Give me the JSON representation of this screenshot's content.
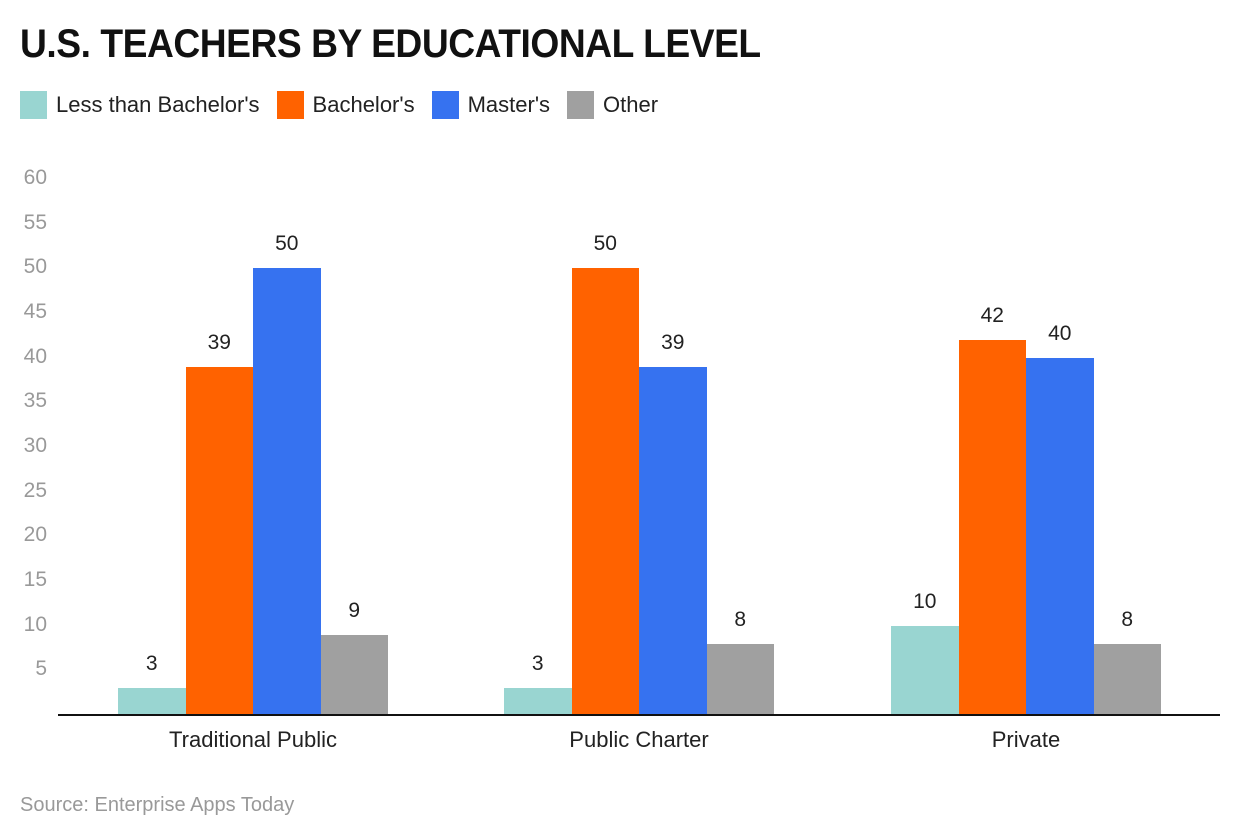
{
  "title": "U.S. TEACHERS BY EDUCATIONAL LEVEL",
  "legend": [
    {
      "label": "Less than Bachelor's",
      "color": "#99d5d1"
    },
    {
      "label": "Bachelor's",
      "color": "#ff6200"
    },
    {
      "label": "Master's",
      "color": "#3672f0"
    },
    {
      "label": "Other",
      "color": "#a0a0a0"
    }
  ],
  "source": "Source: Enterprise Apps Today",
  "chart_data": {
    "type": "bar",
    "title": "U.S. TEACHERS BY EDUCATIONAL LEVEL",
    "xlabel": "",
    "ylabel": "",
    "ylim": [
      0,
      60
    ],
    "yticks": [
      5,
      10,
      15,
      20,
      25,
      30,
      35,
      40,
      45,
      50,
      55,
      60
    ],
    "grid": false,
    "legend_position": "top-left",
    "categories": [
      "Traditional Public",
      "Public Charter",
      "Private"
    ],
    "series": [
      {
        "name": "Less than Bachelor's",
        "color": "#99d5d1",
        "values": [
          3,
          3,
          10
        ]
      },
      {
        "name": "Bachelor's",
        "color": "#ff6200",
        "values": [
          39,
          50,
          42
        ]
      },
      {
        "name": "Master's",
        "color": "#3672f0",
        "values": [
          50,
          39,
          40
        ]
      },
      {
        "name": "Other",
        "color": "#a0a0a0",
        "values": [
          9,
          8,
          8
        ]
      }
    ]
  }
}
